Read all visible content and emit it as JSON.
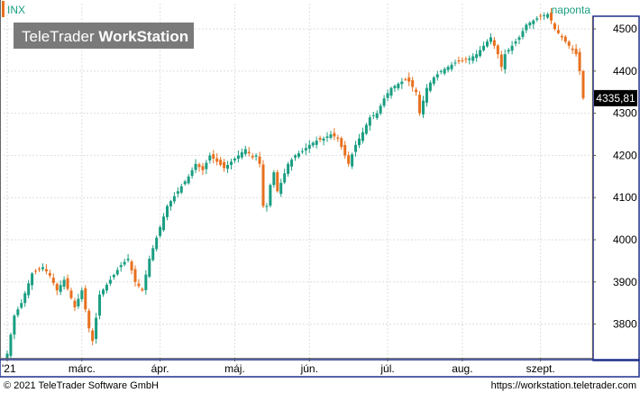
{
  "header": {
    "symbol": "INX",
    "period": "naponta",
    "watermark_light": "TeleTrader",
    "watermark_bold": "WorkStation",
    "last_price": "4335,81"
  },
  "footer": {
    "copyright": "© 2021 TeleTrader Software GmbH",
    "url": "https://workstation.teletrader.com"
  },
  "colors": {
    "up": "#1a9e82",
    "down": "#e8701e",
    "symbol_text": "#1a9e82",
    "price_box_bg": "#000000",
    "price_box_text": "#ffffff",
    "frame": "#1f2f8a",
    "axis_line": "#e3b23c",
    "grid": "#dedede"
  },
  "chart_data": {
    "type": "candlestick",
    "y_range": [
      3720,
      4560
    ],
    "grid": true,
    "y_ticks": [
      {
        "value": 3800,
        "label": "3800"
      },
      {
        "value": 3900,
        "label": "3900"
      },
      {
        "value": 4000,
        "label": "4000"
      },
      {
        "value": 4100,
        "label": "4100"
      },
      {
        "value": 4200,
        "label": "4200"
      },
      {
        "value": 4300,
        "label": "4300"
      },
      {
        "value": 4400,
        "label": "4400"
      },
      {
        "value": 4500,
        "label": "4500"
      }
    ],
    "x_ticks": [
      {
        "index": 0,
        "label": "'21"
      },
      {
        "index": 21,
        "label": "márc."
      },
      {
        "index": 43,
        "label": "ápr."
      },
      {
        "index": 64,
        "label": "máj."
      },
      {
        "index": 85,
        "label": "jún."
      },
      {
        "index": 107,
        "label": "júl."
      },
      {
        "index": 128,
        "label": "aug."
      },
      {
        "index": 150,
        "label": "szept."
      }
    ],
    "close_anchors": [
      [
        0,
        3730
      ],
      [
        2,
        3820
      ],
      [
        4,
        3850
      ],
      [
        7,
        3920
      ],
      [
        10,
        3935
      ],
      [
        12,
        3915
      ],
      [
        14,
        3880
      ],
      [
        16,
        3905
      ],
      [
        19,
        3840
      ],
      [
        21,
        3880
      ],
      [
        23,
        3790
      ],
      [
        24,
        3760
      ],
      [
        26,
        3870
      ],
      [
        29,
        3905
      ],
      [
        32,
        3940
      ],
      [
        34,
        3955
      ],
      [
        36,
        3900
      ],
      [
        38,
        3880
      ],
      [
        40,
        3955
      ],
      [
        43,
        4030
      ],
      [
        45,
        4080
      ],
      [
        48,
        4115
      ],
      [
        51,
        4150
      ],
      [
        53,
        4180
      ],
      [
        55,
        4165
      ],
      [
        57,
        4200
      ],
      [
        59,
        4185
      ],
      [
        61,
        4170
      ],
      [
        63,
        4185
      ],
      [
        65,
        4200
      ],
      [
        67,
        4215
      ],
      [
        69,
        4195
      ],
      [
        70,
        4200
      ],
      [
        71,
        4180
      ],
      [
        72,
        4080
      ],
      [
        73,
        4080
      ],
      [
        74,
        4130
      ],
      [
        75,
        4160
      ],
      [
        76,
        4115
      ],
      [
        77,
        4135
      ],
      [
        79,
        4180
      ],
      [
        81,
        4200
      ],
      [
        83,
        4210
      ],
      [
        85,
        4225
      ],
      [
        87,
        4235
      ],
      [
        89,
        4240
      ],
      [
        91,
        4250
      ],
      [
        93,
        4240
      ],
      [
        95,
        4200
      ],
      [
        96,
        4180
      ],
      [
        98,
        4225
      ],
      [
        100,
        4255
      ],
      [
        102,
        4290
      ],
      [
        104,
        4300
      ],
      [
        106,
        4335
      ],
      [
        108,
        4360
      ],
      [
        110,
        4370
      ],
      [
        112,
        4380
      ],
      [
        113,
        4375
      ],
      [
        115,
        4350
      ],
      [
        116,
        4300
      ],
      [
        118,
        4360
      ],
      [
        120,
        4385
      ],
      [
        122,
        4400
      ],
      [
        124,
        4410
      ],
      [
        126,
        4420
      ],
      [
        128,
        4425
      ],
      [
        130,
        4430
      ],
      [
        132,
        4440
      ],
      [
        134,
        4460
      ],
      [
        136,
        4480
      ],
      [
        138,
        4440
      ],
      [
        139,
        4410
      ],
      [
        140,
        4440
      ],
      [
        142,
        4460
      ],
      [
        144,
        4480
      ],
      [
        146,
        4510
      ],
      [
        148,
        4520
      ],
      [
        150,
        4530
      ],
      [
        152,
        4535
      ],
      [
        153,
        4520
      ],
      [
        154,
        4500
      ],
      [
        156,
        4480
      ],
      [
        158,
        4460
      ],
      [
        160,
        4440
      ],
      [
        161,
        4400
      ],
      [
        162,
        4335.81
      ]
    ],
    "last_value": 4335.81
  }
}
